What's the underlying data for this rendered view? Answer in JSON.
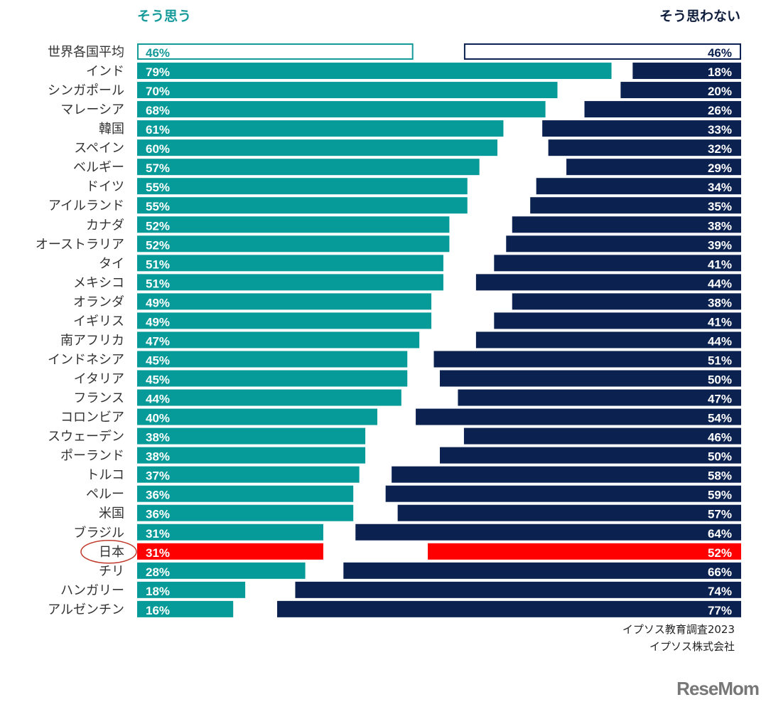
{
  "chart_data": {
    "type": "bar",
    "orientation": "horizontal-diverging",
    "legend_left": "そう思う",
    "legend_right": "そう思わない",
    "categories": [
      "世界各国平均",
      "インド",
      "シンガポール",
      "マレーシア",
      "韓国",
      "スペイン",
      "ベルギー",
      "ドイツ",
      "アイルランド",
      "カナダ",
      "オーストラリア",
      "タイ",
      "メキシコ",
      "オランダ",
      "イギリス",
      "南アフリカ",
      "インドネシア",
      "イタリア",
      "フランス",
      "コロンビア",
      "スウェーデン",
      "ポーランド",
      "トルコ",
      "ペルー",
      "米国",
      "ブラジル",
      "日本",
      "チリ",
      "ハンガリー",
      "アルゼンチン"
    ],
    "series": [
      {
        "name": "そう思う",
        "values": [
          46,
          79,
          70,
          68,
          61,
          60,
          57,
          55,
          55,
          52,
          52,
          51,
          51,
          49,
          49,
          47,
          45,
          45,
          44,
          40,
          38,
          38,
          37,
          36,
          36,
          31,
          31,
          28,
          18,
          16
        ]
      },
      {
        "name": "そう思わない",
        "values": [
          46,
          18,
          20,
          26,
          33,
          32,
          29,
          34,
          35,
          38,
          39,
          41,
          44,
          38,
          41,
          44,
          51,
          50,
          47,
          54,
          46,
          50,
          58,
          59,
          57,
          64,
          52,
          66,
          74,
          77
        ]
      }
    ],
    "value_suffix": "%",
    "highlight": "日本",
    "average_row": "世界各国平均",
    "colors": {
      "agree": "#069b98",
      "disagree": "#0b2150",
      "highlight": "#ff0000",
      "average_agree_outline": "#159a9a",
      "average_disagree_outline": "#0b2150",
      "circle": "#c0392b"
    }
  },
  "source": [
    "イプソス教育調査2023",
    "イプソス株式会社"
  ],
  "logo": "ReseMom"
}
